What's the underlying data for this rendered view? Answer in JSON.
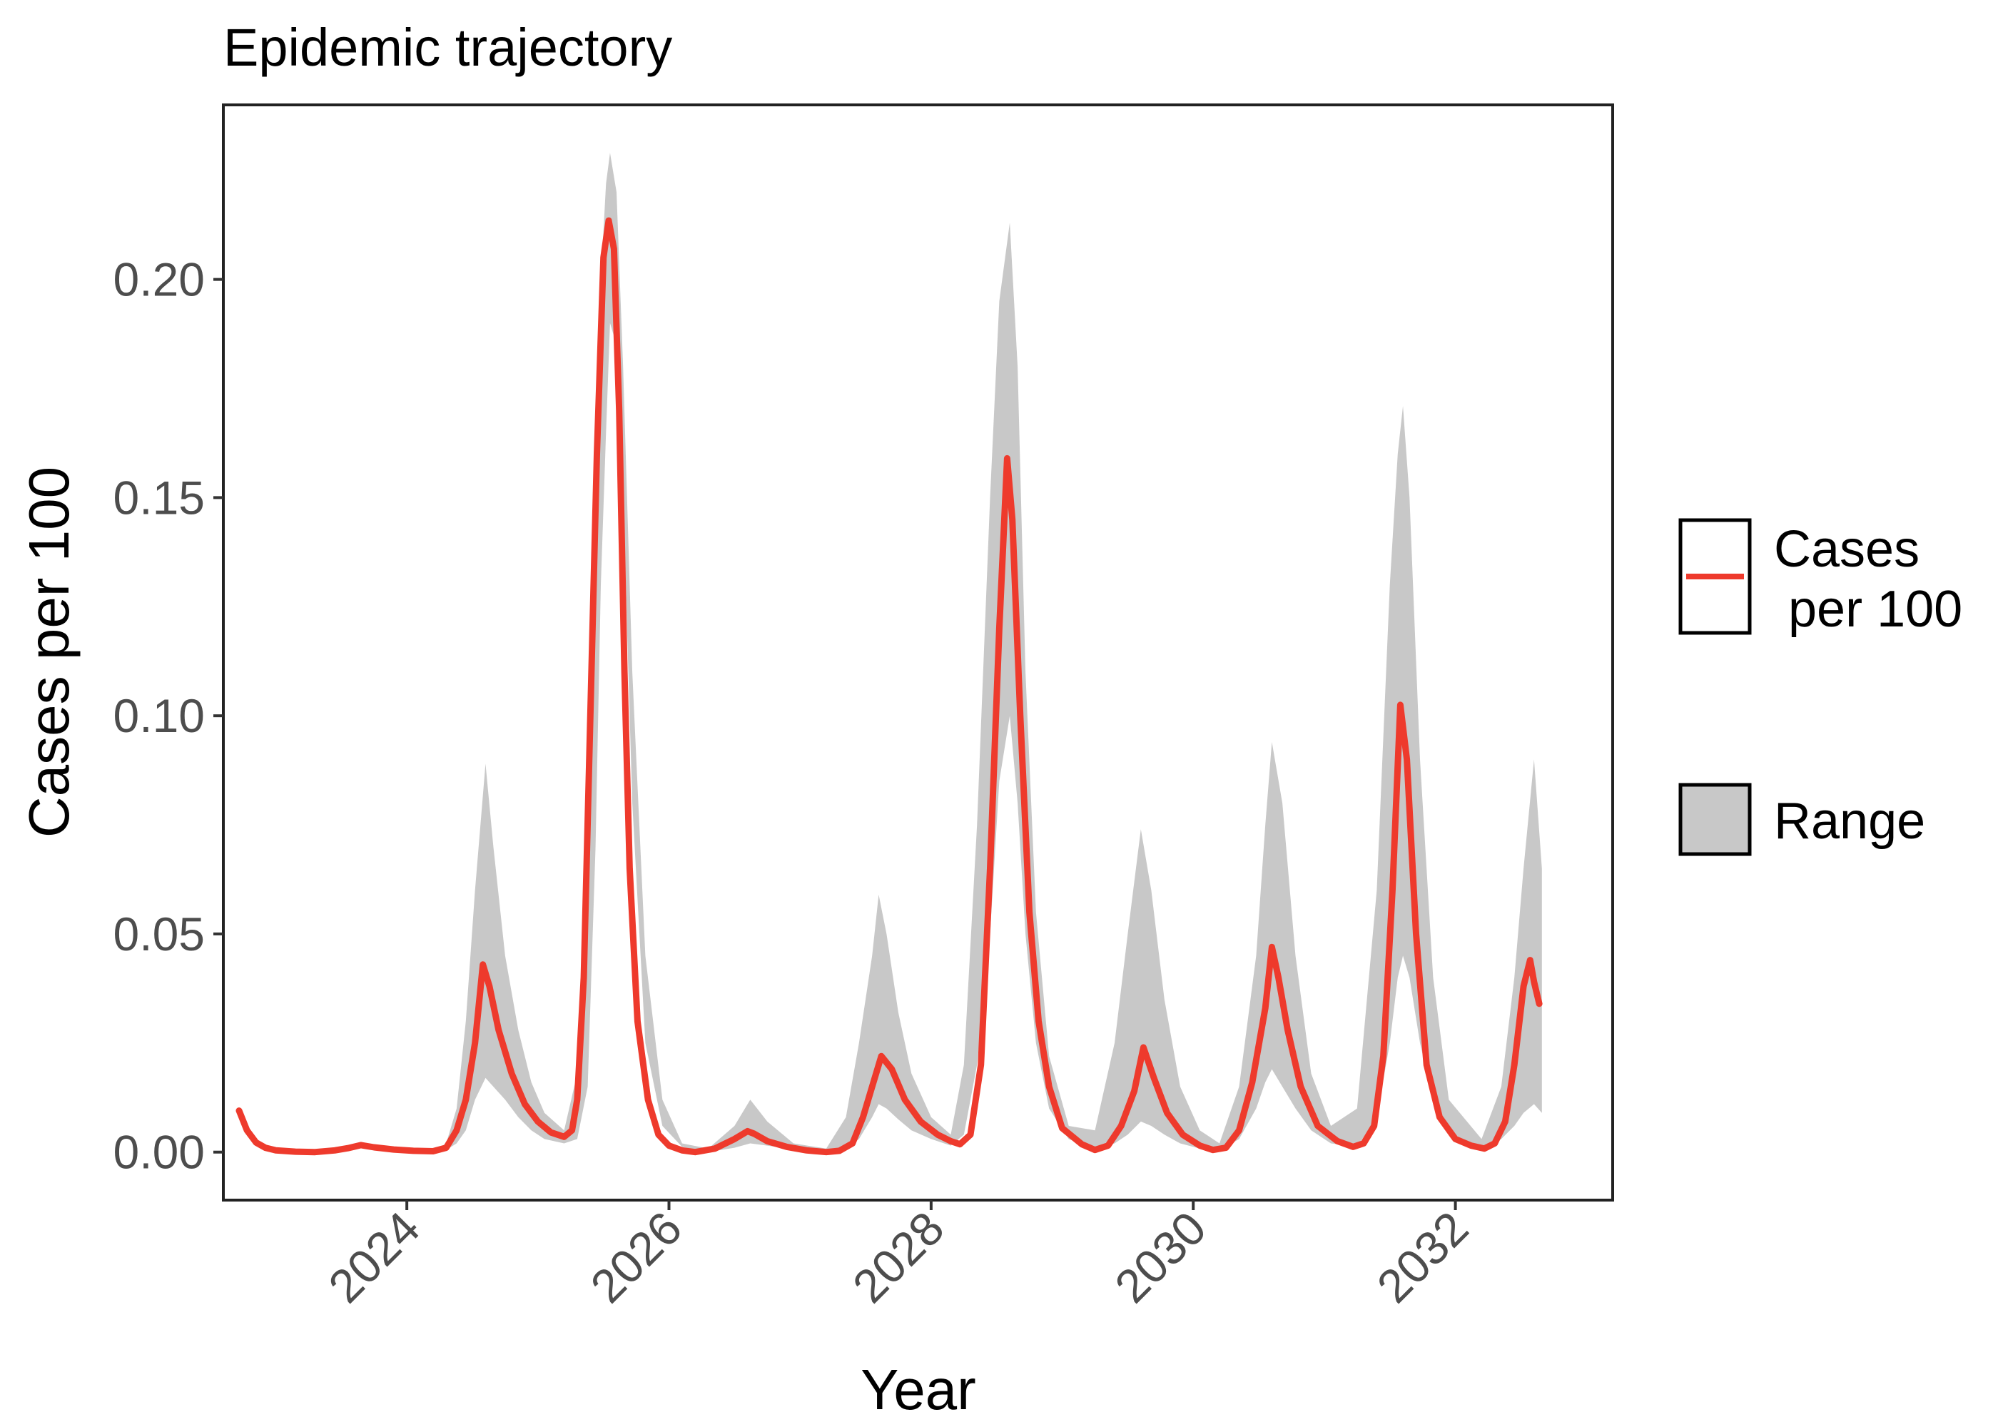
{
  "chart_data": {
    "type": "line",
    "title": "Epidemic trajectory",
    "xlabel": "Year",
    "ylabel": "Cases per 100",
    "xlim": [
      2022.6,
      2033.2
    ],
    "ylim": [
      -0.011,
      0.24
    ],
    "x_ticks": [
      2024,
      2026,
      2028,
      2030,
      2032
    ],
    "x_tick_labels": [
      "2024",
      "2026",
      "2028",
      "2030",
      "2032"
    ],
    "y_ticks": [
      0.0,
      0.05,
      0.1,
      0.15,
      0.2
    ],
    "y_tick_labels": [
      "0.00",
      "0.05",
      "0.10",
      "0.15",
      "0.20"
    ],
    "grid": false,
    "legend_position": "right",
    "legend": [
      {
        "key": "line",
        "label_lines": [
          "Cases",
          " per 100"
        ],
        "color": "#ee3a2c"
      },
      {
        "key": "fill",
        "label_lines": [
          "Range"
        ],
        "color": "#c8c8c8"
      }
    ],
    "colors": {
      "line": "#ee3a2c",
      "range": "#c8c8c8",
      "panel_border": "#222222"
    },
    "series": [
      {
        "name": "Cases per 100",
        "x": [
          2022.72,
          2022.78,
          2022.85,
          2022.92,
          2023.0,
          2023.15,
          2023.3,
          2023.45,
          2023.55,
          2023.65,
          2023.75,
          2023.9,
          2024.05,
          2024.2,
          2024.3,
          2024.38,
          2024.45,
          2024.52,
          2024.58,
          2024.63,
          2024.7,
          2024.8,
          2024.9,
          2025.0,
          2025.1,
          2025.2,
          2025.26,
          2025.3,
          2025.35,
          2025.4,
          2025.45,
          2025.5,
          2025.54,
          2025.58,
          2025.62,
          2025.66,
          2025.7,
          2025.76,
          2025.84,
          2025.92,
          2026.0,
          2026.1,
          2026.2,
          2026.35,
          2026.5,
          2026.6,
          2026.65,
          2026.75,
          2026.9,
          2027.05,
          2027.2,
          2027.3,
          2027.4,
          2027.48,
          2027.55,
          2027.62,
          2027.7,
          2027.8,
          2027.92,
          2028.05,
          2028.15,
          2028.22,
          2028.3,
          2028.38,
          2028.45,
          2028.52,
          2028.58,
          2028.62,
          2028.68,
          2028.75,
          2028.82,
          2028.9,
          2029.0,
          2029.15,
          2029.25,
          2029.35,
          2029.45,
          2029.55,
          2029.62,
          2029.7,
          2029.8,
          2029.92,
          2030.05,
          2030.15,
          2030.25,
          2030.35,
          2030.45,
          2030.55,
          2030.6,
          2030.65,
          2030.72,
          2030.82,
          2030.95,
          2031.1,
          2031.22,
          2031.3,
          2031.38,
          2031.45,
          2031.52,
          2031.58,
          2031.63,
          2031.7,
          2031.78,
          2031.88,
          2032.0,
          2032.12,
          2032.22,
          2032.3,
          2032.38,
          2032.45,
          2032.52,
          2032.57,
          2032.6,
          2032.64
        ],
        "y": [
          0.0095,
          0.005,
          0.0022,
          0.001,
          0.0004,
          0.0001,
          0.0,
          0.0004,
          0.0009,
          0.0016,
          0.0011,
          0.0006,
          0.0003,
          0.0002,
          0.001,
          0.005,
          0.012,
          0.025,
          0.043,
          0.038,
          0.028,
          0.018,
          0.011,
          0.007,
          0.0045,
          0.0035,
          0.005,
          0.012,
          0.04,
          0.1,
          0.16,
          0.205,
          0.2135,
          0.207,
          0.17,
          0.11,
          0.065,
          0.03,
          0.012,
          0.004,
          0.0015,
          0.0004,
          0.0,
          0.0008,
          0.003,
          0.0048,
          0.0042,
          0.0025,
          0.0012,
          0.0004,
          0.0,
          0.0003,
          0.002,
          0.008,
          0.015,
          0.022,
          0.019,
          0.012,
          0.007,
          0.004,
          0.0025,
          0.0018,
          0.004,
          0.02,
          0.065,
          0.12,
          0.159,
          0.145,
          0.1,
          0.055,
          0.03,
          0.015,
          0.0055,
          0.0018,
          0.0005,
          0.0015,
          0.006,
          0.014,
          0.024,
          0.017,
          0.009,
          0.004,
          0.0015,
          0.0005,
          0.001,
          0.005,
          0.016,
          0.033,
          0.047,
          0.04,
          0.028,
          0.015,
          0.006,
          0.0025,
          0.0012,
          0.002,
          0.006,
          0.022,
          0.06,
          0.1025,
          0.09,
          0.05,
          0.02,
          0.008,
          0.003,
          0.0015,
          0.0008,
          0.002,
          0.007,
          0.02,
          0.038,
          0.044,
          0.039,
          0.034
        ]
      },
      {
        "name": "Range",
        "x": [
          2022.72,
          2022.85,
          2023.0,
          2023.3,
          2023.65,
          2023.9,
          2024.2,
          2024.3,
          2024.38,
          2024.45,
          2024.52,
          2024.6,
          2024.66,
          2024.75,
          2024.85,
          2024.95,
          2025.05,
          2025.2,
          2025.3,
          2025.38,
          2025.44,
          2025.48,
          2025.52,
          2025.55,
          2025.6,
          2025.65,
          2025.72,
          2025.82,
          2025.95,
          2026.1,
          2026.3,
          2026.5,
          2026.62,
          2026.75,
          2026.95,
          2027.2,
          2027.35,
          2027.45,
          2027.55,
          2027.6,
          2027.66,
          2027.75,
          2027.85,
          2028.0,
          2028.15,
          2028.25,
          2028.35,
          2028.45,
          2028.52,
          2028.6,
          2028.66,
          2028.72,
          2028.8,
          2028.9,
          2029.05,
          2029.25,
          2029.4,
          2029.5,
          2029.6,
          2029.68,
          2029.78,
          2029.9,
          2030.05,
          2030.2,
          2030.35,
          2030.48,
          2030.55,
          2030.6,
          2030.68,
          2030.78,
          2030.9,
          2031.05,
          2031.25,
          2031.4,
          2031.5,
          2031.56,
          2031.6,
          2031.65,
          2031.73,
          2031.83,
          2031.95,
          2032.2,
          2032.35,
          2032.45,
          2032.52,
          2032.6,
          2032.66
        ],
        "low": [
          0.0095,
          0.0022,
          0.0004,
          0.0,
          0.0016,
          0.0006,
          0.0002,
          0.0005,
          0.002,
          0.005,
          0.012,
          0.017,
          0.015,
          0.012,
          0.008,
          0.005,
          0.003,
          0.002,
          0.003,
          0.015,
          0.07,
          0.13,
          0.165,
          0.19,
          0.185,
          0.15,
          0.08,
          0.025,
          0.006,
          0.0012,
          0.0,
          0.001,
          0.002,
          0.0015,
          0.0006,
          0.0,
          0.0008,
          0.003,
          0.008,
          0.011,
          0.01,
          0.0075,
          0.005,
          0.003,
          0.0015,
          0.004,
          0.02,
          0.05,
          0.085,
          0.1,
          0.08,
          0.05,
          0.025,
          0.01,
          0.003,
          0.0005,
          0.002,
          0.004,
          0.007,
          0.006,
          0.004,
          0.002,
          0.0008,
          0.0003,
          0.003,
          0.01,
          0.016,
          0.019,
          0.015,
          0.01,
          0.005,
          0.002,
          0.0012,
          0.008,
          0.025,
          0.04,
          0.045,
          0.04,
          0.025,
          0.012,
          0.004,
          0.0008,
          0.003,
          0.006,
          0.009,
          0.011,
          0.009
        ],
        "high": [
          0.0095,
          0.0022,
          0.0004,
          0.0,
          0.0016,
          0.0006,
          0.0003,
          0.002,
          0.01,
          0.03,
          0.06,
          0.089,
          0.07,
          0.045,
          0.028,
          0.016,
          0.009,
          0.005,
          0.018,
          0.07,
          0.15,
          0.2,
          0.222,
          0.229,
          0.22,
          0.18,
          0.11,
          0.045,
          0.012,
          0.002,
          0.0008,
          0.006,
          0.012,
          0.007,
          0.002,
          0.0008,
          0.008,
          0.025,
          0.045,
          0.059,
          0.05,
          0.032,
          0.018,
          0.008,
          0.004,
          0.02,
          0.075,
          0.15,
          0.195,
          0.213,
          0.18,
          0.11,
          0.055,
          0.022,
          0.006,
          0.005,
          0.025,
          0.05,
          0.074,
          0.06,
          0.035,
          0.015,
          0.005,
          0.002,
          0.015,
          0.045,
          0.075,
          0.094,
          0.08,
          0.045,
          0.018,
          0.006,
          0.01,
          0.06,
          0.13,
          0.16,
          0.171,
          0.15,
          0.09,
          0.04,
          0.012,
          0.003,
          0.015,
          0.04,
          0.065,
          0.09,
          0.065
        ]
      }
    ]
  }
}
